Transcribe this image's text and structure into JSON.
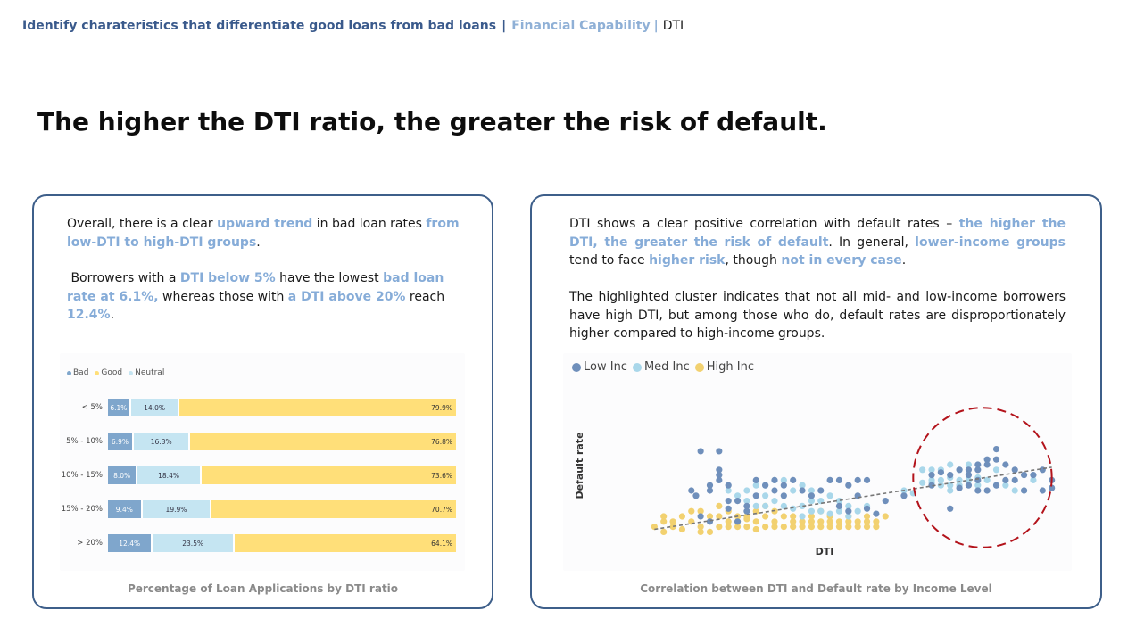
{
  "breadcrumb": {
    "main": "Identify charateristics that differentiate good loans from bad loans",
    "separator": "|",
    "mid": "Financial Capability",
    "last": "DTI"
  },
  "headline": "The higher the DTI ratio, the greater the risk of default.",
  "left_card": {
    "p1": {
      "t1": "Overall, there is a clear ",
      "h1": "upward trend",
      "t2": " in bad loan rates ",
      "h2": "from low-DTI to high-DTI groups",
      "t3": "."
    },
    "p2": {
      "t1": " Borrowers with a ",
      "h1": "DTI below 5%",
      "t2": " have the lowest ",
      "h2": "bad loan rate at 6.1%,",
      "t3": " whereas those with ",
      "h3": "a DTI above 20%",
      "t4": " reach ",
      "h4": "12.4%",
      "t5": "."
    },
    "caption": "Percentage of Loan Applications by DTI ratio"
  },
  "right_card": {
    "p1": {
      "t1": "DTI shows a clear positive correlation with default rates – ",
      "h1": "the higher the DTI, the greater the risk of default",
      "t2": ". In general, ",
      "h2": "lower-income groups",
      "t3": " tend to face ",
      "h3": "higher risk",
      "t4": ", though ",
      "h4": "not in every case",
      "t5": "."
    },
    "p2": "The highlighted cluster indicates that not all mid- and low-income borrowers have high DTI, but among those who do, default rates are disproportionately higher compared to high-income groups.",
    "caption": "Correlation between DTI and Default rate by Income Level"
  },
  "colors": {
    "bad": "#7fa6cc",
    "good": "#ffdf79",
    "neutral": "#c5e5f2",
    "low_inc": "#6f8fbb",
    "med_inc": "#a9d7ea",
    "high_inc": "#f2d170",
    "highlight": "#b3131b"
  },
  "chart_data": [
    {
      "type": "bar",
      "stacked": true,
      "orientation": "horizontal",
      "title": "Percentage of Loan Applications by DTI ratio",
      "legend": [
        "Bad",
        "Good",
        "Neutral"
      ],
      "categories": [
        "< 5%",
        "5% - 10%",
        "10% - 15%",
        "15% - 20%",
        "> 20%"
      ],
      "series": [
        {
          "name": "Bad",
          "values": [
            6.1,
            6.9,
            8.0,
            9.4,
            12.4
          ],
          "labels": [
            "6.1%",
            "6.9%",
            "8.0%",
            "9.4%",
            "12.4%"
          ]
        },
        {
          "name": "Neutral",
          "values": [
            14.0,
            16.3,
            18.4,
            19.9,
            23.5
          ],
          "labels": [
            "14.0%",
            "16.3%",
            "18.4%",
            "19.9%",
            "23.5%"
          ]
        },
        {
          "name": "Good",
          "values": [
            79.9,
            76.8,
            73.6,
            70.7,
            64.1
          ],
          "labels": [
            "79.9%",
            "76.8%",
            "73.6%",
            "70.7%",
            "64.1%"
          ]
        }
      ]
    },
    {
      "type": "scatter",
      "title": "Correlation between DTI and Default rate by Income Level",
      "xlabel": "DTI",
      "ylabel": "Default rate",
      "xlim": [
        0,
        45
      ],
      "ylim": [
        0,
        30
      ],
      "trendline": {
        "style": "dashed",
        "from": [
          1,
          2.5
        ],
        "to": [
          44,
          14.5
        ]
      },
      "highlight": {
        "shape": "dashed-circle",
        "center": [
          36.5,
          12.5
        ],
        "rx": 7.5,
        "ry": 13.5
      },
      "legend": [
        "Low Inc",
        "Med Inc",
        "High Inc"
      ],
      "series": [
        {
          "name": "Low Inc",
          "points": [
            [
              6,
              17.6
            ],
            [
              8,
              17.6
            ],
            [
              8,
              14
            ],
            [
              8,
              13
            ],
            [
              8,
              12
            ],
            [
              7,
              11
            ],
            [
              9,
              11
            ],
            [
              5,
              10
            ],
            [
              7,
              10
            ],
            [
              5.5,
              9
            ],
            [
              9,
              8
            ],
            [
              10,
              8
            ],
            [
              11,
              7
            ],
            [
              9,
              6.5
            ],
            [
              11,
              6
            ],
            [
              12,
              9
            ],
            [
              13,
              11
            ],
            [
              14,
              12
            ],
            [
              15,
              11
            ],
            [
              16,
              12
            ],
            [
              12,
              12
            ],
            [
              15,
              9
            ],
            [
              14,
              10
            ],
            [
              17,
              10
            ],
            [
              18,
              9
            ],
            [
              19,
              10
            ],
            [
              20,
              12
            ],
            [
              21,
              12
            ],
            [
              22,
              11
            ],
            [
              23,
              12
            ],
            [
              24,
              12
            ],
            [
              23,
              9
            ],
            [
              21,
              7
            ],
            [
              22,
              6
            ],
            [
              24,
              6.5
            ],
            [
              25,
              5.5
            ],
            [
              6,
              5
            ],
            [
              7,
              4
            ],
            [
              10,
              4
            ],
            [
              26,
              8
            ],
            [
              28,
              9
            ],
            [
              31,
              13
            ],
            [
              32,
              13.5
            ],
            [
              33,
              13
            ],
            [
              34,
              14
            ],
            [
              35,
              14
            ],
            [
              36,
              14
            ],
            [
              37,
              15
            ],
            [
              38,
              16
            ],
            [
              39,
              15
            ],
            [
              40,
              14
            ],
            [
              41,
              13
            ],
            [
              42,
              13
            ],
            [
              43,
              14
            ],
            [
              44,
              12
            ],
            [
              35,
              11
            ],
            [
              36,
              10
            ],
            [
              37,
              10
            ],
            [
              38,
              11
            ],
            [
              39,
              12
            ],
            [
              40,
              12
            ],
            [
              41,
              10
            ],
            [
              43,
              10
            ],
            [
              44,
              10.5
            ],
            [
              35,
              13
            ],
            [
              36,
              15
            ],
            [
              37,
              16
            ],
            [
              38,
              18
            ],
            [
              31,
              11
            ],
            [
              33,
              6.5
            ],
            [
              34,
              10.5
            ],
            [
              36,
              12
            ]
          ]
        },
        {
          "name": "Med Inc",
          "points": [
            [
              9,
              10
            ],
            [
              10,
              9
            ],
            [
              11,
              10
            ],
            [
              12,
              11
            ],
            [
              13,
              11
            ],
            [
              14,
              12
            ],
            [
              15,
              12
            ],
            [
              16,
              10
            ],
            [
              17,
              11
            ],
            [
              18,
              10
            ],
            [
              13,
              9
            ],
            [
              14,
              8
            ],
            [
              15,
              7
            ],
            [
              16,
              6.5
            ],
            [
              17,
              7
            ],
            [
              18,
              8
            ],
            [
              19,
              8
            ],
            [
              20,
              9
            ],
            [
              21,
              8
            ],
            [
              22,
              7
            ],
            [
              23,
              6
            ],
            [
              24,
              7
            ],
            [
              19,
              6
            ],
            [
              20,
              5.5
            ],
            [
              21,
              6
            ],
            [
              22,
              5
            ],
            [
              17,
              5
            ],
            [
              18,
              6
            ],
            [
              11,
              8
            ],
            [
              12,
              7
            ],
            [
              13,
              7
            ],
            [
              28,
              10
            ],
            [
              29,
              9.5
            ],
            [
              30,
              14
            ],
            [
              31,
              14
            ],
            [
              32,
              14
            ],
            [
              33,
              15
            ],
            [
              34,
              14
            ],
            [
              35,
              15
            ],
            [
              31,
              12
            ],
            [
              32,
              12
            ],
            [
              33,
              11
            ],
            [
              34,
              12
            ],
            [
              35,
              12
            ],
            [
              36,
              11
            ],
            [
              37,
              12
            ],
            [
              32,
              11
            ],
            [
              33,
              10
            ],
            [
              34,
              11
            ],
            [
              38,
              11
            ],
            [
              39,
              11
            ],
            [
              40,
              10
            ],
            [
              41,
              10
            ],
            [
              42,
              12
            ],
            [
              30,
              11.5
            ],
            [
              31,
              11.5
            ],
            [
              33,
              12.5
            ],
            [
              38,
              14
            ],
            [
              36,
              12.5
            ]
          ]
        },
        {
          "name": "High Inc",
          "points": [
            [
              1,
              3
            ],
            [
              2,
              4
            ],
            [
              3,
              3
            ],
            [
              4,
              5
            ],
            [
              5,
              4
            ],
            [
              6,
              6
            ],
            [
              7,
              5
            ],
            [
              8,
              3
            ],
            [
              9,
              4
            ],
            [
              10,
              3
            ],
            [
              11,
              5
            ],
            [
              12,
              4
            ],
            [
              13,
              3
            ],
            [
              14,
              4
            ],
            [
              15,
              5
            ],
            [
              16,
              3
            ],
            [
              17,
              4
            ],
            [
              18,
              5
            ],
            [
              19,
              4
            ],
            [
              20,
              3
            ],
            [
              21,
              4
            ],
            [
              22,
              5
            ],
            [
              23,
              3
            ],
            [
              24,
              4
            ],
            [
              25,
              3
            ],
            [
              6,
              3
            ],
            [
              7,
              2
            ],
            [
              8,
              5
            ],
            [
              9,
              6
            ],
            [
              10,
              5
            ],
            [
              11,
              3
            ],
            [
              12,
              2.5
            ],
            [
              13,
              5
            ],
            [
              14,
              6
            ],
            [
              15,
              3
            ],
            [
              16,
              5
            ],
            [
              17,
              3
            ],
            [
              18,
              4
            ],
            [
              19,
              3
            ],
            [
              20,
              4
            ],
            [
              21,
              3
            ],
            [
              22,
              4
            ],
            [
              23,
              4
            ],
            [
              24,
              3
            ],
            [
              25,
              4
            ],
            [
              2,
              2
            ],
            [
              3,
              4
            ],
            [
              4,
              2.5
            ],
            [
              5,
              6
            ],
            [
              6,
              2
            ],
            [
              9,
              3
            ],
            [
              10,
              4
            ],
            [
              11,
              4.5
            ],
            [
              12,
              6
            ],
            [
              14,
              3
            ],
            [
              16,
              4
            ],
            [
              18,
              3
            ],
            [
              20,
              5
            ],
            [
              22,
              3
            ],
            [
              24,
              5
            ],
            [
              26,
              5
            ],
            [
              2,
              5
            ],
            [
              8,
              7
            ],
            [
              13,
              7
            ],
            [
              19,
              6
            ]
          ]
        }
      ]
    }
  ]
}
